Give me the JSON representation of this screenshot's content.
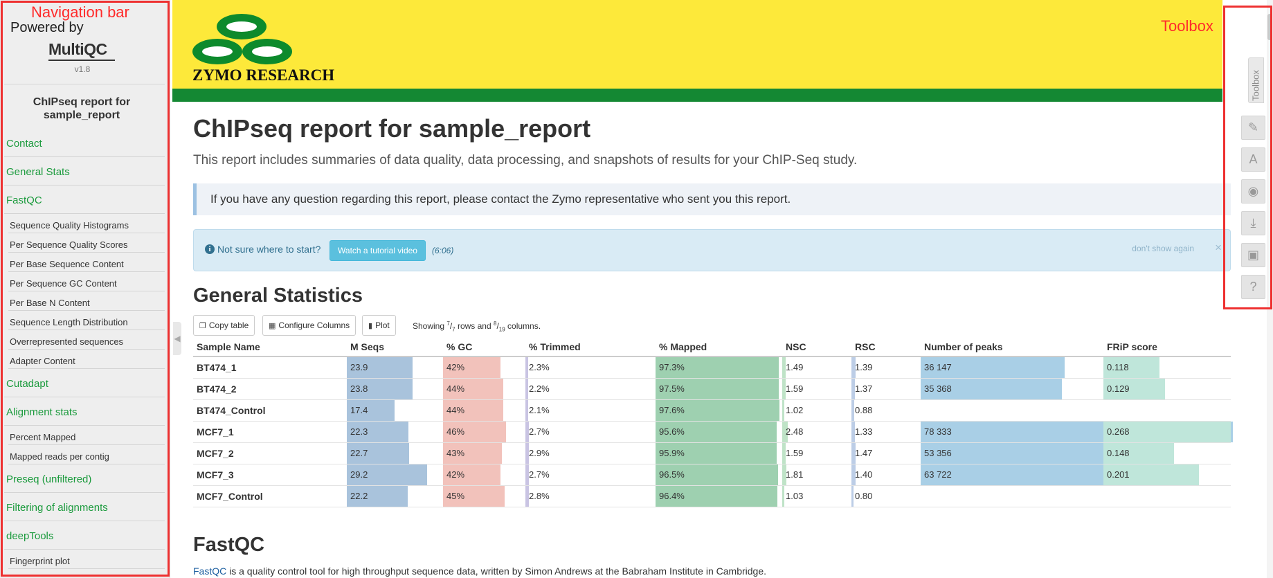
{
  "annotations": {
    "navigation_bar_label": "Navigation bar",
    "toolbox_label": "Toolbox",
    "anno_color": "#ee3030"
  },
  "sidebar": {
    "powered_by": "Powered by",
    "logo_text": "MultiQC",
    "version": "v1.8",
    "report_title": "ChIPseq report for sample_report",
    "items": [
      {
        "label": "Contact",
        "type": "section"
      },
      {
        "label": "General Stats",
        "type": "section"
      },
      {
        "label": "FastQC",
        "type": "section"
      },
      {
        "label": "Sequence Quality Histograms",
        "type": "sub"
      },
      {
        "label": "Per Sequence Quality Scores",
        "type": "sub"
      },
      {
        "label": "Per Base Sequence Content",
        "type": "sub"
      },
      {
        "label": "Per Sequence GC Content",
        "type": "sub"
      },
      {
        "label": "Per Base N Content",
        "type": "sub"
      },
      {
        "label": "Sequence Length Distribution",
        "type": "sub"
      },
      {
        "label": "Overrepresented sequences",
        "type": "sub"
      },
      {
        "label": "Adapter Content",
        "type": "sub"
      },
      {
        "label": "Cutadapt",
        "type": "section"
      },
      {
        "label": "Alignment stats",
        "type": "section"
      },
      {
        "label": "Percent Mapped",
        "type": "sub"
      },
      {
        "label": "Mapped reads per contig",
        "type": "sub"
      },
      {
        "label": "Preseq (unfiltered)",
        "type": "section"
      },
      {
        "label": "Filtering of alignments",
        "type": "section"
      },
      {
        "label": "deepTools",
        "type": "section"
      },
      {
        "label": "Fingerprint plot",
        "type": "sub"
      }
    ],
    "collapse_icon": "chevron-left-icon",
    "link_color": "#1a9a3c"
  },
  "header": {
    "brand_text": "ZYMO RESEARCH",
    "bg_color": "#fde93a",
    "stripe_color": "#148833"
  },
  "main": {
    "title": "ChIPseq report for sample_report",
    "subtitle": "This report includes summaries of data quality, data processing, and snapshots of results for your ChIP-Seq study.",
    "contact_note": "If you have any question regarding this report, please contact the Zymo representative who sent you this report.",
    "tutorial": {
      "prompt": "Not sure where to start?",
      "button": "Watch a tutorial video",
      "duration": "(6:06)",
      "dismiss": "don't show again",
      "close": "×"
    },
    "general_stats": {
      "heading": "General Statistics",
      "buttons": {
        "copy": "Copy table",
        "configure": "Configure Columns",
        "plot": "Plot"
      },
      "showing": {
        "prefix": "Showing ",
        "rows_shown": "7",
        "rows_total": "7",
        "middle": " rows and ",
        "cols_shown": "8",
        "cols_total": "19",
        "suffix": " columns."
      },
      "columns": [
        "Sample Name",
        "M Seqs",
        "% GC",
        "% Trimmed",
        "% Mapped",
        "NSC",
        "RSC",
        "Number of peaks",
        "FRiP score"
      ],
      "rows": [
        {
          "name": "BT474_1",
          "mseqs": "23.9",
          "gc": "42%",
          "trimmed": "2.3%",
          "mapped": "97.3%",
          "nsc": "1.49",
          "rsc": "1.39",
          "peaks": "36 147",
          "frip": "0.118"
        },
        {
          "name": "BT474_2",
          "mseqs": "23.8",
          "gc": "44%",
          "trimmed": "2.2%",
          "mapped": "97.5%",
          "nsc": "1.59",
          "rsc": "1.37",
          "peaks": "35 368",
          "frip": "0.129"
        },
        {
          "name": "BT474_Control",
          "mseqs": "17.4",
          "gc": "44%",
          "trimmed": "2.1%",
          "mapped": "97.6%",
          "nsc": "1.02",
          "rsc": "0.88",
          "peaks": "",
          "frip": ""
        },
        {
          "name": "MCF7_1",
          "mseqs": "22.3",
          "gc": "46%",
          "trimmed": "2.7%",
          "mapped": "95.6%",
          "nsc": "2.48",
          "rsc": "1.33",
          "peaks": "78 333",
          "frip": "0.268"
        },
        {
          "name": "MCF7_2",
          "mseqs": "22.7",
          "gc": "43%",
          "trimmed": "2.9%",
          "mapped": "95.9%",
          "nsc": "1.59",
          "rsc": "1.47",
          "peaks": "53 356",
          "frip": "0.148"
        },
        {
          "name": "MCF7_3",
          "mseqs": "29.2",
          "gc": "42%",
          "trimmed": "2.7%",
          "mapped": "96.5%",
          "nsc": "1.81",
          "rsc": "1.40",
          "peaks": "63 722",
          "frip": "0.201"
        },
        {
          "name": "MCF7_Control",
          "mseqs": "22.2",
          "gc": "45%",
          "trimmed": "2.8%",
          "mapped": "96.4%",
          "nsc": "1.03",
          "rsc": "0.80",
          "peaks": "",
          "frip": ""
        }
      ]
    },
    "fastqc": {
      "heading": "FastQC",
      "link_text": "FastQC",
      "description": " is a quality control tool for high throughput sequence data, written by Simon Andrews at the Babraham Institute in Cambridge."
    }
  },
  "toolbox": {
    "tab_label": "Toolbox",
    "buttons": [
      {
        "name": "pin-icon",
        "glyph": "✎"
      },
      {
        "name": "font-icon",
        "glyph": "A"
      },
      {
        "name": "eye-slash-icon",
        "glyph": "◉"
      },
      {
        "name": "download-icon",
        "glyph": "⤓"
      },
      {
        "name": "save-icon",
        "glyph": "▣"
      },
      {
        "name": "help-icon",
        "glyph": "?"
      }
    ]
  }
}
